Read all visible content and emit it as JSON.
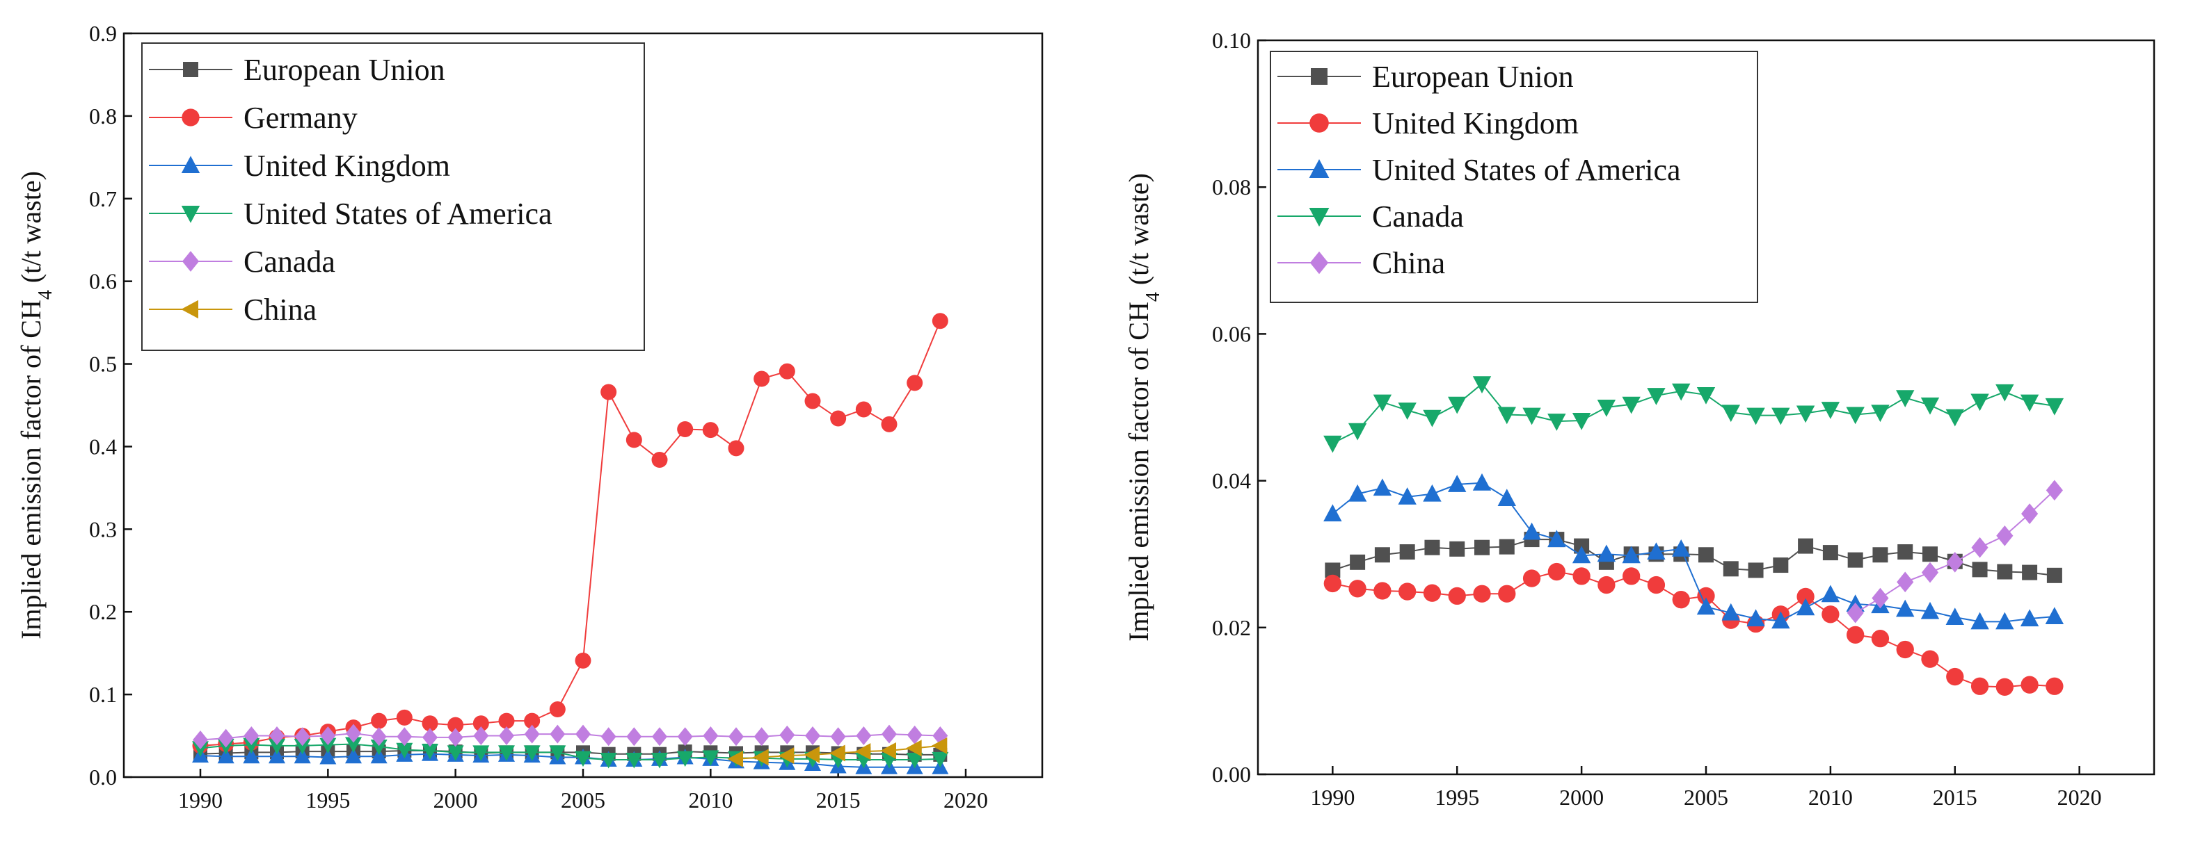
{
  "chart_data": [
    {
      "type": "line",
      "panel": "left",
      "ylabel_main": "Implied emission factor of CH",
      "ylabel_sub": "4",
      "ylabel_tail": " (t/t waste)",
      "xlabel": "",
      "xlim": [
        1987,
        2023
      ],
      "ylim": [
        0,
        0.9
      ],
      "xticks": [
        1990,
        1995,
        2000,
        2005,
        2010,
        2015,
        2020
      ],
      "yticks": [
        "0.0",
        "0.1",
        "0.2",
        "0.3",
        "0.4",
        "0.5",
        "0.6",
        "0.7",
        "0.8",
        "0.9"
      ],
      "legend_position": "top-left",
      "x": [
        1990,
        1991,
        1992,
        1993,
        1994,
        1995,
        1996,
        1997,
        1998,
        1999,
        2000,
        2001,
        2002,
        2003,
        2004,
        2005,
        2006,
        2007,
        2008,
        2009,
        2010,
        2011,
        2012,
        2013,
        2014,
        2015,
        2016,
        2017,
        2018,
        2019
      ],
      "series": [
        {
          "name": "European Union",
          "marker": "square",
          "color": "#505050",
          "values": [
            0.028,
            0.029,
            0.03,
            0.03,
            0.031,
            0.031,
            0.031,
            0.031,
            0.032,
            0.032,
            0.031,
            0.029,
            0.03,
            0.03,
            0.03,
            0.03,
            0.028,
            0.028,
            0.028,
            0.031,
            0.03,
            0.029,
            0.03,
            0.03,
            0.03,
            0.029,
            0.028,
            0.028,
            0.027,
            0.027
          ]
        },
        {
          "name": "Germany",
          "marker": "circle",
          "color": "#f03c3c",
          "values": [
            0.038,
            0.04,
            0.042,
            0.048,
            0.05,
            0.055,
            0.06,
            0.068,
            0.072,
            0.065,
            0.063,
            0.065,
            0.068,
            0.068,
            0.082,
            0.141,
            0.466,
            0.408,
            0.384,
            0.421,
            0.42,
            0.398,
            0.482,
            0.491,
            0.455,
            0.434,
            0.445,
            0.427,
            0.477,
            0.552
          ]
        },
        {
          "name": "United Kingdom",
          "marker": "triangle-up",
          "color": "#1f6fd1",
          "values": [
            0.026,
            0.025,
            0.025,
            0.025,
            0.025,
            0.024,
            0.025,
            0.025,
            0.027,
            0.028,
            0.027,
            0.026,
            0.027,
            0.026,
            0.024,
            0.024,
            0.021,
            0.021,
            0.022,
            0.024,
            0.022,
            0.019,
            0.018,
            0.017,
            0.016,
            0.013,
            0.012,
            0.012,
            0.012,
            0.012
          ]
        },
        {
          "name": "United States of America",
          "marker": "triangle-down",
          "color": "#17a86a",
          "values": [
            0.035,
            0.038,
            0.039,
            0.038,
            0.038,
            0.039,
            0.04,
            0.037,
            0.033,
            0.032,
            0.03,
            0.03,
            0.03,
            0.03,
            0.03,
            0.023,
            0.021,
            0.021,
            0.021,
            0.023,
            0.024,
            0.023,
            0.023,
            0.022,
            0.022,
            0.021,
            0.021,
            0.021,
            0.021,
            0.022
          ]
        },
        {
          "name": "Canada",
          "marker": "diamond",
          "color": "#c07ee0",
          "values": [
            0.045,
            0.047,
            0.05,
            0.05,
            0.049,
            0.05,
            0.053,
            0.049,
            0.049,
            0.048,
            0.048,
            0.05,
            0.05,
            0.052,
            0.052,
            0.052,
            0.049,
            0.049,
            0.049,
            0.049,
            0.05,
            0.049,
            0.049,
            0.051,
            0.05,
            0.049,
            0.05,
            0.052,
            0.051,
            0.05
          ]
        },
        {
          "name": "China",
          "marker": "triangle-left",
          "color": "#c9960c",
          "values": [
            null,
            null,
            null,
            null,
            null,
            null,
            null,
            null,
            null,
            null,
            null,
            null,
            null,
            null,
            null,
            null,
            null,
            null,
            null,
            null,
            null,
            0.022,
            0.024,
            0.026,
            0.027,
            0.029,
            0.031,
            0.032,
            0.035,
            0.038
          ]
        }
      ]
    },
    {
      "type": "line",
      "panel": "right",
      "ylabel_main": "Implied emission factor of CH",
      "ylabel_sub": "4",
      "ylabel_tail": " (t/t waste)",
      "xlabel": "",
      "xlim": [
        1987,
        2023
      ],
      "ylim": [
        0,
        0.1
      ],
      "xticks": [
        1990,
        1995,
        2000,
        2005,
        2010,
        2015,
        2020
      ],
      "yticks": [
        "0.00",
        "0.02",
        "0.04",
        "0.06",
        "0.08",
        "0.10"
      ],
      "legend_position": "top-left",
      "x": [
        1990,
        1991,
        1992,
        1993,
        1994,
        1995,
        1996,
        1997,
        1998,
        1999,
        2000,
        2001,
        2002,
        2003,
        2004,
        2005,
        2006,
        2007,
        2008,
        2009,
        2010,
        2011,
        2012,
        2013,
        2014,
        2015,
        2016,
        2017,
        2018,
        2019
      ],
      "series": [
        {
          "name": "European Union",
          "marker": "square",
          "color": "#505050",
          "values": [
            0.0278,
            0.0289,
            0.0299,
            0.0303,
            0.0309,
            0.0307,
            0.0309,
            0.031,
            0.032,
            0.032,
            0.0311,
            0.0289,
            0.03,
            0.03,
            0.03,
            0.0299,
            0.028,
            0.0278,
            0.0285,
            0.0311,
            0.0302,
            0.0292,
            0.0299,
            0.0303,
            0.03,
            0.029,
            0.0279,
            0.0276,
            0.0275,
            0.0271
          ]
        },
        {
          "name": "United Kingdom",
          "marker": "circle",
          "color": "#f03c3c",
          "values": [
            0.026,
            0.0253,
            0.025,
            0.0249,
            0.0247,
            0.0243,
            0.0246,
            0.0246,
            0.0267,
            0.0276,
            0.027,
            0.0258,
            0.027,
            0.0258,
            0.0238,
            0.0243,
            0.021,
            0.0205,
            0.0218,
            0.0242,
            0.0218,
            0.019,
            0.0185,
            0.017,
            0.0157,
            0.0133,
            0.012,
            0.0119,
            0.0122,
            0.012
          ]
        },
        {
          "name": "United States of America",
          "marker": "triangle-up",
          "color": "#1f6fd1",
          "values": [
            0.0355,
            0.0382,
            0.039,
            0.0378,
            0.0382,
            0.0395,
            0.0397,
            0.0376,
            0.033,
            0.032,
            0.0298,
            0.03,
            0.0298,
            0.0303,
            0.0307,
            0.0228,
            0.022,
            0.0212,
            0.0209,
            0.0227,
            0.0245,
            0.0232,
            0.023,
            0.0225,
            0.0222,
            0.0214,
            0.0208,
            0.0208,
            0.0212,
            0.0215
          ]
        },
        {
          "name": "Canada",
          "marker": "triangle-down",
          "color": "#17a86a",
          "values": [
            0.0451,
            0.0468,
            0.0507,
            0.0496,
            0.0486,
            0.0504,
            0.0532,
            0.049,
            0.0489,
            0.0481,
            0.0482,
            0.05,
            0.0504,
            0.0516,
            0.0522,
            0.0517,
            0.0493,
            0.0489,
            0.0489,
            0.0492,
            0.0497,
            0.049,
            0.0493,
            0.0513,
            0.0503,
            0.0487,
            0.0508,
            0.0521,
            0.0507,
            0.0502
          ]
        },
        {
          "name": "China",
          "marker": "diamond",
          "color": "#c07ee0",
          "values": [
            null,
            null,
            null,
            null,
            null,
            null,
            null,
            null,
            null,
            null,
            null,
            null,
            null,
            null,
            null,
            null,
            null,
            null,
            null,
            null,
            null,
            0.022,
            0.024,
            0.0262,
            0.0275,
            0.0289,
            0.0309,
            0.0325,
            0.0355,
            0.0387
          ]
        }
      ]
    }
  ]
}
